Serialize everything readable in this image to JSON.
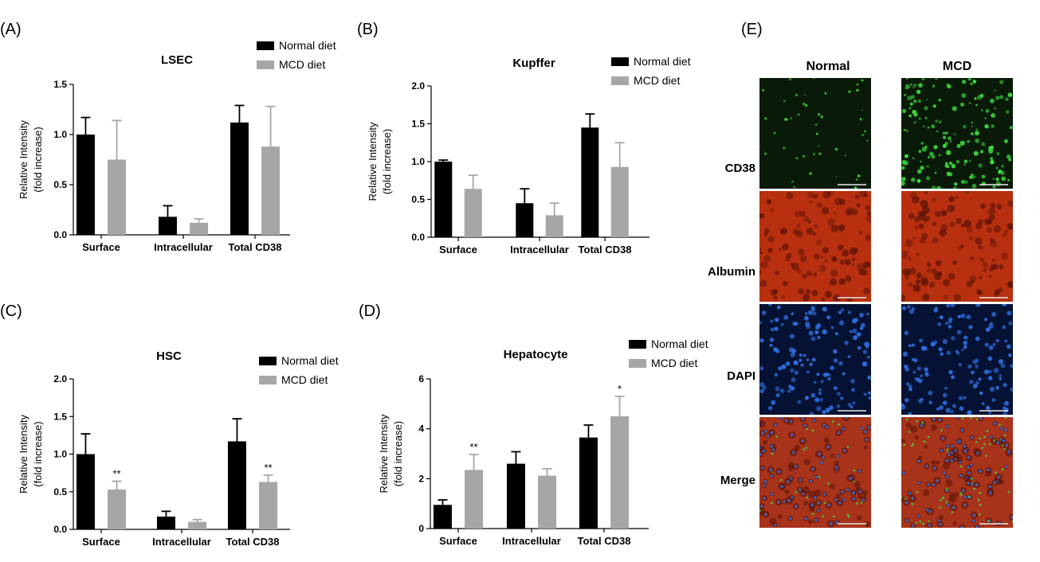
{
  "panel_letters": [
    "(A)",
    "(B)",
    "(C)",
    "(D)",
    "(E)"
  ],
  "legend": {
    "normal": "Normal diet",
    "mcd": "MCD diet",
    "normal_color": "#000000",
    "mcd_color": "#a6a6a6"
  },
  "chart_data": [
    {
      "type": "bar",
      "title": "LSEC",
      "ylabel": [
        "Relative Intensity",
        "(fold increase)"
      ],
      "categories": [
        "Surface",
        "Intracellular",
        "Total CD38"
      ],
      "ylim": [
        0,
        1.5
      ],
      "yticks": [
        "0.0",
        "0.5",
        "1.0",
        "1.5"
      ],
      "ytick_values": [
        0,
        0.5,
        1.0,
        1.5
      ],
      "series": [
        {
          "name": "Normal diet",
          "values": [
            1.0,
            0.18,
            1.12
          ],
          "errors": [
            0.17,
            0.11,
            0.17
          ]
        },
        {
          "name": "MCD diet",
          "values": [
            0.75,
            0.12,
            0.88
          ],
          "errors": [
            0.39,
            0.04,
            0.4
          ]
        }
      ],
      "significance": [
        [
          "",
          ""
        ],
        [
          "",
          ""
        ],
        [
          "",
          ""
        ]
      ]
    },
    {
      "type": "bar",
      "title": "Kupffer",
      "ylabel": [
        "Relative Intensity",
        "(fold increase)"
      ],
      "categories": [
        "Surface",
        "Intracellular",
        "Total CD38"
      ],
      "ylim": [
        0,
        2.0
      ],
      "yticks": [
        "0.0",
        "0.5",
        "1.0",
        "1.5",
        "2.0"
      ],
      "ytick_values": [
        0,
        0.5,
        1.0,
        1.5,
        2.0
      ],
      "series": [
        {
          "name": "Normal diet",
          "values": [
            1.0,
            0.45,
            1.45
          ],
          "errors": [
            0.02,
            0.19,
            0.18
          ]
        },
        {
          "name": "MCD diet",
          "values": [
            0.64,
            0.29,
            0.93
          ],
          "errors": [
            0.18,
            0.16,
            0.32
          ]
        }
      ],
      "significance": [
        [
          "",
          ""
        ],
        [
          "",
          ""
        ],
        [
          "",
          ""
        ]
      ]
    },
    {
      "type": "bar",
      "title": "HSC",
      "ylabel": [
        "Relative Intensity",
        "(fold increase)"
      ],
      "categories": [
        "Surface",
        "Intracellular",
        "Total CD38"
      ],
      "ylim": [
        0,
        2.0
      ],
      "yticks": [
        "0.0",
        "0.5",
        "1.0",
        "1.5",
        "2.0"
      ],
      "ytick_values": [
        0,
        0.5,
        1.0,
        1.5,
        2.0
      ],
      "series": [
        {
          "name": "Normal diet",
          "values": [
            1.0,
            0.17,
            1.17
          ],
          "errors": [
            0.27,
            0.07,
            0.3
          ]
        },
        {
          "name": "MCD diet",
          "values": [
            0.53,
            0.1,
            0.63
          ],
          "errors": [
            0.11,
            0.03,
            0.09
          ]
        }
      ],
      "significance": [
        [
          "",
          "**"
        ],
        [
          "",
          ""
        ],
        [
          "",
          "**"
        ]
      ]
    },
    {
      "type": "bar",
      "title": "Hepatocyte",
      "ylabel": [
        "Relative Intensity",
        "(fold increase)"
      ],
      "categories": [
        "Surface",
        "Intracellular",
        "Total CD38"
      ],
      "ylim": [
        0,
        6
      ],
      "yticks": [
        "0",
        "2",
        "4",
        "6"
      ],
      "ytick_values": [
        0,
        2,
        4,
        6
      ],
      "series": [
        {
          "name": "Normal diet",
          "values": [
            0.95,
            2.6,
            3.65
          ],
          "errors": [
            0.2,
            0.48,
            0.5
          ]
        },
        {
          "name": "MCD diet",
          "values": [
            2.35,
            2.12,
            4.5
          ],
          "errors": [
            0.62,
            0.28,
            0.8
          ]
        }
      ],
      "significance": [
        [
          "",
          "**"
        ],
        [
          "",
          ""
        ],
        [
          "",
          "*"
        ]
      ]
    }
  ],
  "micrograph": {
    "columns": [
      "Normal",
      "MCD"
    ],
    "rows": [
      "CD38",
      "Albumin",
      "DAPI",
      "Merge"
    ],
    "colors": {
      "cd38_bg": "#0a1a08",
      "cd38_dot": "#3fdc3f",
      "albumin_bg": "#b8300f",
      "albumin_dot": "#5a1206",
      "dapi_bg": "#061233",
      "dapi_dot": "#2f6fe0",
      "merge_bg": "#a8331b"
    }
  }
}
